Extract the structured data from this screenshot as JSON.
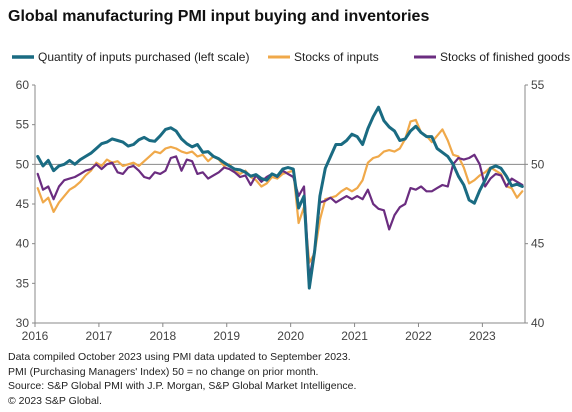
{
  "title": "Global manufacturing PMI input buying and inventories",
  "footnotes": [
    "Data compiled October 2023 using PMI data updated to September 2023.",
    "PMI (Purchasing Managers' Index) 50 = no change on prior month.",
    "Source: S&P Global PMI with J.P. Morgan, S&P Global Market Intelligence.",
    "© 2023 S&P Global."
  ],
  "chart_data": {
    "type": "line",
    "x_start": "2016-01",
    "x_end": "2023-09",
    "x_ticks": [
      "2016",
      "2017",
      "2018",
      "2019",
      "2020",
      "2021",
      "2022",
      "2023"
    ],
    "y_left": {
      "min": 30,
      "max": 60,
      "ticks": [
        30,
        35,
        40,
        45,
        50,
        55,
        60
      ]
    },
    "y_right": {
      "min": 40,
      "max": 55,
      "ticks": [
        40,
        45,
        50,
        55
      ]
    },
    "reference_line": 50,
    "grid": false,
    "legend_position": "top",
    "series": [
      {
        "name": "Quantity of inputs purchased (left scale)",
        "axis": "left",
        "color": "#1a6b82",
        "values": [
          51.0,
          49.8,
          50.5,
          49.2,
          49.8,
          50.0,
          50.5,
          50.0,
          50.6,
          51.0,
          51.4,
          52.0,
          52.6,
          52.8,
          53.2,
          53.0,
          52.8,
          52.3,
          52.5,
          53.1,
          53.4,
          53.0,
          52.9,
          53.6,
          54.4,
          54.6,
          54.2,
          53.2,
          52.6,
          52.2,
          52.5,
          51.5,
          51.6,
          51.0,
          50.7,
          50.2,
          49.8,
          49.4,
          49.3,
          49.0,
          48.5,
          48.7,
          48.2,
          48.0,
          48.8,
          48.5,
          49.4,
          49.6,
          49.4,
          44.5,
          46.0,
          34.4,
          39.0,
          46.0,
          49.5,
          51.0,
          52.5,
          52.5,
          53.0,
          53.8,
          53.5,
          52.5,
          54.5,
          56.0,
          57.2,
          55.5,
          54.7,
          54.2,
          53.0,
          53.2,
          54.2,
          54.8,
          54.0,
          53.5,
          53.5,
          52.0,
          51.5,
          51.0,
          50.0,
          48.5,
          47.4,
          45.5,
          45.1,
          46.7,
          48.0,
          49.5,
          49.8,
          49.5,
          48.5,
          47.3,
          47.5,
          47.2
        ]
      },
      {
        "name": "Stocks of inputs",
        "axis": "right",
        "color": "#f0a94a",
        "values": [
          48.5,
          47.6,
          47.9,
          47.0,
          47.6,
          48.0,
          48.4,
          48.6,
          48.9,
          49.3,
          49.6,
          50.1,
          49.9,
          50.3,
          50.1,
          50.2,
          49.9,
          50.0,
          50.1,
          49.9,
          50.2,
          50.5,
          50.8,
          50.7,
          51.0,
          51.1,
          51.0,
          50.8,
          50.7,
          50.8,
          50.5,
          50.6,
          50.2,
          50.5,
          50.3,
          49.9,
          50.0,
          49.6,
          49.4,
          49.6,
          49.2,
          49.0,
          48.6,
          48.8,
          49.2,
          49.1,
          49.4,
          49.5,
          49.6,
          46.3,
          47.3,
          43.8,
          44.4,
          46.5,
          47.8,
          47.9,
          48.0,
          48.3,
          48.5,
          48.3,
          48.5,
          49.0,
          50.1,
          50.4,
          50.5,
          50.8,
          50.9,
          50.8,
          51.0,
          51.6,
          52.7,
          52.8,
          52.0,
          51.8,
          51.4,
          51.8,
          52.2,
          51.5,
          50.6,
          50.5,
          49.8,
          48.8,
          49.0,
          49.3,
          49.5,
          49.8,
          49.6,
          49.4,
          48.6,
          48.5,
          47.9,
          48.3
        ]
      },
      {
        "name": "Stocks of finished goods",
        "axis": "right",
        "color": "#6b2d80",
        "values": [
          49.4,
          48.4,
          48.6,
          47.8,
          48.6,
          49.0,
          49.1,
          49.2,
          49.4,
          49.6,
          49.7,
          50.0,
          49.7,
          50.0,
          50.1,
          49.5,
          49.4,
          49.8,
          49.9,
          49.6,
          49.2,
          49.1,
          49.5,
          49.4,
          49.6,
          50.4,
          50.5,
          49.6,
          50.3,
          50.2,
          49.4,
          49.5,
          49.1,
          49.3,
          49.5,
          49.8,
          49.7,
          49.5,
          49.2,
          49.3,
          48.7,
          49.3,
          48.9,
          49.2,
          49.4,
          49.2,
          49.6,
          49.4,
          49.2,
          48.0,
          48.6,
          42.8,
          44.6,
          47.6,
          47.7,
          47.9,
          47.6,
          47.8,
          48.0,
          47.8,
          48.0,
          47.8,
          48.4,
          47.5,
          47.2,
          47.1,
          45.9,
          46.8,
          47.3,
          47.5,
          48.5,
          48.4,
          48.6,
          48.3,
          48.3,
          48.5,
          48.7,
          48.6,
          50.0,
          50.4,
          50.3,
          50.4,
          50.6,
          50.0,
          48.6,
          49.1,
          49.4,
          49.3,
          48.6,
          49.1,
          48.9,
          48.7
        ]
      }
    ]
  }
}
